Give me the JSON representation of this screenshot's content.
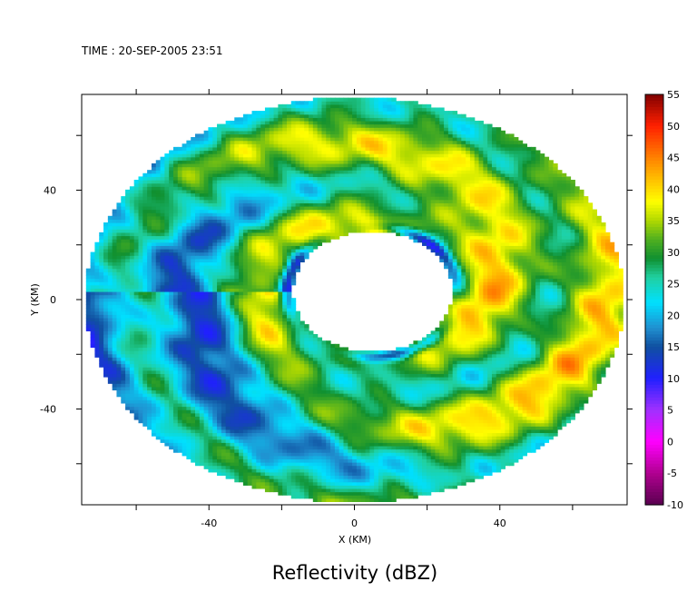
{
  "chart_data": {
    "type": "heatmap",
    "title": "TIME : 20-SEP-2005 23:51",
    "caption": "Reflectivity (dBZ)",
    "xlabel": "X (KM)",
    "ylabel": "Y (KM)",
    "xlim": [
      -75,
      75
    ],
    "ylim": [
      -75,
      75
    ],
    "x_ticks": [
      -40,
      0,
      40
    ],
    "y_ticks": [
      40,
      0,
      -40
    ],
    "x_tick_labels": [
      "-40",
      "0",
      "40"
    ],
    "y_tick_labels": [
      "40",
      "0",
      "-40"
    ],
    "colorbar": {
      "min": -10,
      "max": 55,
      "labels": [
        "55",
        "50",
        "45",
        "40",
        "35",
        "30",
        "25",
        "20",
        "15",
        "10",
        "5",
        "0",
        "-5",
        "-10"
      ],
      "values": [
        55,
        50,
        45,
        40,
        35,
        30,
        25,
        20,
        15,
        10,
        5,
        0,
        -5,
        -10
      ],
      "stops": [
        {
          "v": -10,
          "c": "#5a0050"
        },
        {
          "v": -5,
          "c": "#b00090"
        },
        {
          "v": 0,
          "c": "#ff00ff"
        },
        {
          "v": 5,
          "c": "#a030ff"
        },
        {
          "v": 10,
          "c": "#2020ff"
        },
        {
          "v": 15,
          "c": "#1050a0"
        },
        {
          "v": 18,
          "c": "#2090d0"
        },
        {
          "v": 22,
          "c": "#00e0ff"
        },
        {
          "v": 26,
          "c": "#20d0a0"
        },
        {
          "v": 29,
          "c": "#109030"
        },
        {
          "v": 32,
          "c": "#50b020"
        },
        {
          "v": 35,
          "c": "#b0d800"
        },
        {
          "v": 38,
          "c": "#ffff00"
        },
        {
          "v": 41,
          "c": "#ffc800"
        },
        {
          "v": 45,
          "c": "#ff8000"
        },
        {
          "v": 50,
          "c": "#ff2000"
        },
        {
          "v": 55,
          "c": "#800000"
        }
      ]
    },
    "field": {
      "domain_radius_km": 74,
      "eye_radius_km": 22,
      "eye_center_km": [
        5,
        3
      ],
      "pixel_km": 1.2
    }
  }
}
